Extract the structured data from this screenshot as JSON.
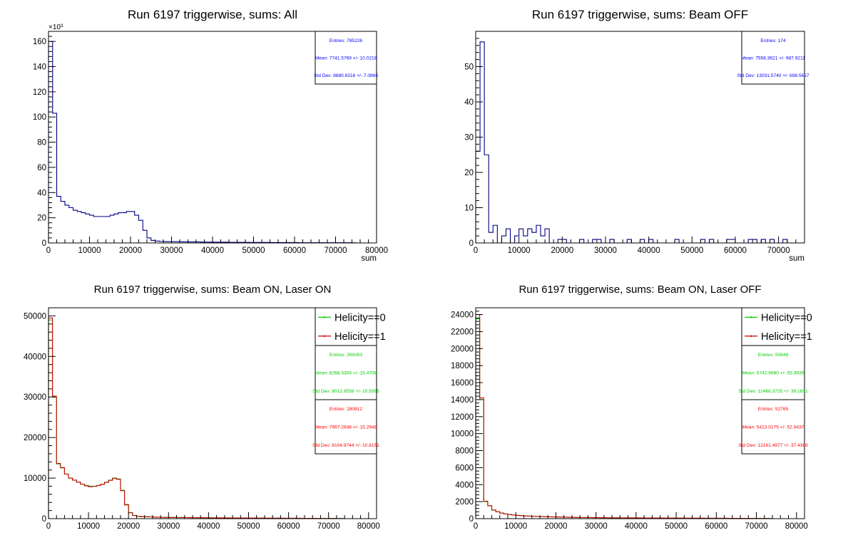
{
  "chart_data": [
    {
      "type": "bar",
      "title": "Run 6197 triggerwise, sums: All",
      "xlabel": "sum",
      "ylabel": "",
      "xlim": [
        0,
        80000
      ],
      "ylim": [
        0,
        168
      ],
      "y_multiplier_label": "×10³",
      "bin_width": 1000,
      "x_ticks": [
        0,
        10000,
        20000,
        30000,
        40000,
        50000,
        60000,
        70000,
        80000
      ],
      "y_ticks": [
        0,
        20,
        40,
        60,
        80,
        100,
        120,
        140,
        160
      ],
      "series": [
        {
          "values": [
            160,
            103,
            37,
            33,
            30,
            28,
            26,
            25,
            24,
            23,
            22,
            21,
            21,
            21,
            21,
            22,
            23,
            24,
            24,
            25,
            25,
            22,
            18,
            10,
            4,
            2,
            1.5,
            1.2,
            1.1,
            1,
            1,
            1,
            0.9,
            0.9,
            0.8,
            0.8,
            0.8,
            0.7,
            0.7,
            0.7,
            0.6,
            0.6,
            0.6,
            0.6,
            0.5,
            0.5,
            0.5,
            0.5,
            0.5,
            0.4,
            0.4,
            0.4,
            0.4,
            0.4,
            0.3,
            0.3,
            0.3,
            0.3,
            0.3,
            0.3,
            0.3,
            0.2,
            0.2,
            0.2,
            0.2,
            0.2,
            0.2,
            0.2,
            0.2,
            0.2,
            0.2,
            0.2,
            0.2,
            0.2,
            0.1,
            0,
            0,
            0,
            0,
            0
          ],
          "color": "#000080"
        }
      ],
      "stats": [
        {
          "color": "#0000ff",
          "lines": [
            "Entries: 785226",
            "Mean: 7741.5769 +/- 10.0218",
            "Std Dev: 8880.6316 +/- 7.0865"
          ]
        }
      ],
      "legend": []
    },
    {
      "type": "bar",
      "title": "Run 6197 triggerwise, sums: Beam OFF",
      "xlabel": "sum",
      "ylabel": "",
      "xlim": [
        0,
        76000
      ],
      "ylim": [
        0,
        60
      ],
      "y_multiplier_label": "",
      "bin_width": 1000,
      "x_ticks": [
        0,
        10000,
        20000,
        30000,
        40000,
        50000,
        60000,
        70000
      ],
      "y_ticks": [
        0,
        10,
        20,
        30,
        40,
        50
      ],
      "series": [
        {
          "values": [
            26,
            57,
            25,
            3,
            5,
            0,
            2,
            4,
            0,
            2,
            4,
            2,
            4,
            3,
            5,
            2,
            4,
            0,
            0,
            1,
            1,
            0,
            0,
            0,
            1,
            0,
            0,
            1,
            1,
            0,
            0,
            1,
            0,
            0,
            0,
            1,
            0,
            0,
            1,
            0,
            1,
            0,
            0,
            0,
            0,
            0,
            1,
            0,
            0,
            0,
            0,
            0,
            1,
            0,
            1,
            0,
            0,
            0,
            1,
            1,
            0,
            0,
            0,
            1,
            1,
            0,
            1,
            0,
            1,
            0,
            0,
            1,
            0,
            0,
            0,
            0
          ],
          "color": "#000080"
        }
      ],
      "stats": [
        {
          "color": "#0000ff",
          "lines": [
            "Entries: 174",
            "Mean: 7558.3621 +/- 987.9211",
            "Std Dev: 13031.5740 +/- 698.5657"
          ]
        }
      ],
      "legend": []
    },
    {
      "type": "bar",
      "title": "Run 6197 triggerwise, sums: Beam ON, Laser ON",
      "xlabel": "",
      "ylabel": "",
      "xlim": [
        0,
        82000
      ],
      "ylim": [
        0,
        52000
      ],
      "y_multiplier_label": "",
      "bin_width": 1000,
      "x_ticks": [
        0,
        10000,
        20000,
        30000,
        40000,
        50000,
        60000,
        70000,
        80000
      ],
      "y_ticks": [
        0,
        10000,
        20000,
        30000,
        40000,
        50000
      ],
      "series": [
        {
          "name": "Helicity==0",
          "values": [
            49000,
            30000,
            13500,
            12500,
            11000,
            10000,
            9500,
            9000,
            8500,
            8200,
            8000,
            8000,
            8200,
            8500,
            9000,
            9500,
            10000,
            9800,
            7000,
            3500,
            1500,
            800,
            600,
            500,
            500,
            450,
            400,
            350,
            330,
            320,
            310,
            300,
            290,
            280,
            270,
            260,
            250,
            240,
            230,
            220,
            210,
            200,
            195,
            190,
            185,
            180,
            175,
            170,
            165,
            160,
            155,
            150,
            145,
            140,
            135,
            130,
            125,
            120,
            115,
            110,
            105,
            100,
            95,
            90,
            85,
            80,
            75,
            70,
            65,
            60,
            55,
            50,
            45,
            40,
            0,
            0,
            0,
            0,
            0,
            0,
            0,
            0
          ],
          "color": "#00cc00"
        },
        {
          "name": "Helicity==1",
          "values": [
            49500,
            30200,
            13600,
            12600,
            11000,
            10000,
            9500,
            9000,
            8500,
            8100,
            7900,
            7950,
            8150,
            8450,
            8950,
            9450,
            9950,
            9700,
            6900,
            3400,
            1450,
            780,
            590,
            490,
            480,
            440,
            390,
            345,
            325,
            315,
            305,
            295,
            285,
            275,
            265,
            255,
            245,
            235,
            225,
            215,
            205,
            198,
            192,
            187,
            182,
            177,
            172,
            167,
            162,
            157,
            152,
            147,
            142,
            137,
            132,
            127,
            122,
            117,
            112,
            107,
            102,
            97,
            92,
            87,
            82,
            77,
            72,
            67,
            62,
            57,
            52,
            47,
            42,
            37,
            0,
            0,
            0,
            0,
            0,
            0,
            0,
            0
          ],
          "color": "#cc0000"
        }
      ],
      "stats": [
        {
          "color": "#00cc00",
          "lines": [
            "Entries: 269263",
            "Mean: 8268.3309 +/- 15.4708",
            "Std Dev: 8012.9558 +/- 10.9395"
          ]
        },
        {
          "color": "#ff0000",
          "lines": [
            "Entries: 280812",
            "Mean: 7967.2648 +/- 15.2948",
            "Std Dev: 8104.9744 +/- 10.8151"
          ]
        }
      ],
      "legend": [
        "Helicity==0",
        "Helicity==1"
      ]
    },
    {
      "type": "bar",
      "title": "Run 6197 triggerwise, sums: Beam ON, Laser OFF",
      "xlabel": "",
      "ylabel": "",
      "xlim": [
        0,
        82000
      ],
      "ylim": [
        0,
        24800
      ],
      "y_multiplier_label": "",
      "bin_width": 1000,
      "x_ticks": [
        0,
        10000,
        20000,
        30000,
        40000,
        50000,
        60000,
        70000,
        80000
      ],
      "y_ticks": [
        0,
        2000,
        4000,
        6000,
        8000,
        10000,
        12000,
        14000,
        16000,
        18000,
        20000,
        22000,
        24000
      ],
      "series": [
        {
          "name": "Helicity==0",
          "values": [
            23500,
            14000,
            2000,
            1500,
            1000,
            800,
            650,
            550,
            480,
            420,
            380,
            350,
            320,
            300,
            280,
            260,
            245,
            230,
            215,
            200,
            190,
            180,
            170,
            160,
            150,
            140,
            135,
            130,
            125,
            120,
            115,
            110,
            105,
            100,
            98,
            96,
            94,
            92,
            90,
            88,
            86,
            84,
            82,
            80,
            78,
            76,
            74,
            72,
            70,
            68,
            66,
            64,
            62,
            60,
            58,
            56,
            54,
            52,
            50,
            48,
            46,
            44,
            42,
            40,
            38,
            36,
            34,
            32,
            30,
            28,
            26,
            24,
            22,
            20,
            0,
            0,
            0,
            0,
            0,
            0,
            0,
            0
          ],
          "color": "#00cc00"
        },
        {
          "name": "Helicity==1",
          "values": [
            24000,
            14200,
            2050,
            1520,
            1020,
            810,
            655,
            555,
            485,
            425,
            385,
            352,
            322,
            302,
            282,
            262,
            247,
            232,
            217,
            202,
            192,
            182,
            172,
            162,
            152,
            142,
            137,
            132,
            127,
            122,
            117,
            112,
            107,
            102,
            99,
            97,
            95,
            93,
            91,
            89,
            87,
            85,
            83,
            81,
            79,
            77,
            75,
            73,
            71,
            69,
            67,
            65,
            63,
            61,
            59,
            57,
            55,
            53,
            51,
            49,
            47,
            45,
            43,
            41,
            39,
            37,
            35,
            33,
            31,
            29,
            27,
            25,
            23,
            21,
            0,
            0,
            0,
            0,
            0,
            0,
            0,
            0
          ],
          "color": "#cc0000"
        }
      ],
      "stats": [
        {
          "color": "#00cc00",
          "lines": [
            "Entries: 50648",
            "Mean: 5742.9660 +/- 55.3935",
            "Std Dev: 12466.3725 +/- 39.1691"
          ]
        },
        {
          "color": "#ff0000",
          "lines": [
            "Entries: 52765",
            "Mean: 5413.0175 +/- 52.9437",
            "Std Dev: 12161.4977 +/- 37.4368"
          ]
        }
      ],
      "legend": [
        "Helicity==0",
        "Helicity==1"
      ]
    }
  ]
}
